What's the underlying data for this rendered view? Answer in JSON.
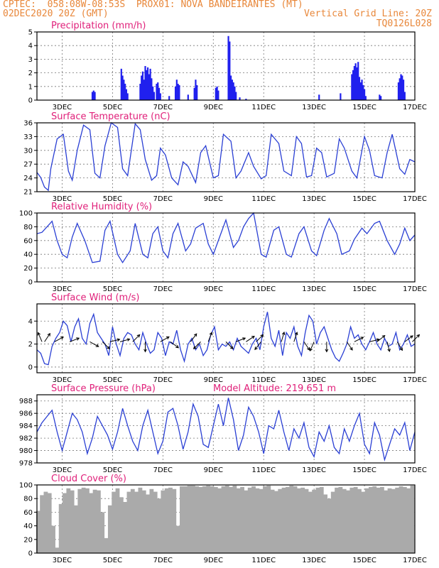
{
  "header": {
    "line1_left": "CPTEC:  058:08W-08:53S  PROX01: NOVA BANDEIRANTES (MT)",
    "line2_left": "02DEC2020 20Z (GMT)",
    "line2_right": "Vertical Grid Line: 20Z",
    "line3_right": "TQ0126L028"
  },
  "colors": {
    "header": "#e8873a",
    "title": "#e0207a",
    "series": "#2a3fd4",
    "bars": "#2020ee",
    "cloud": "#aaaaaa"
  },
  "chart_data": [
    {
      "type": "bar",
      "title": "Precipitation (mm/h)",
      "x_tick_labels": [
        "3DEC",
        "5DEC",
        "7DEC",
        "9DEC",
        "11DEC",
        "13DEC",
        "15DEC",
        "17DEC"
      ],
      "x_tick_days": [
        3,
        5,
        7,
        9,
        11,
        13,
        15,
        17
      ],
      "xlim": [
        2.0,
        17.0
      ],
      "ylim": [
        0,
        5
      ],
      "y_ticks": [
        0,
        1,
        2,
        3,
        4,
        5
      ],
      "grid": true,
      "x": [
        4.2,
        4.25,
        4.3,
        5.35,
        5.4,
        5.45,
        5.5,
        5.55,
        5.6,
        6.1,
        6.15,
        6.2,
        6.25,
        6.3,
        6.35,
        6.4,
        6.45,
        6.5,
        6.55,
        6.6,
        6.65,
        6.75,
        6.8,
        6.85,
        6.9,
        7.25,
        7.5,
        7.55,
        7.6,
        7.65,
        8.0,
        8.25,
        8.3,
        8.35,
        9.1,
        9.15,
        9.2,
        9.6,
        9.65,
        9.7,
        9.75,
        9.8,
        9.85,
        9.9,
        10.05,
        10.3,
        13.2,
        14.05,
        14.5,
        14.55,
        14.6,
        14.65,
        14.7,
        14.75,
        14.8,
        14.85,
        14.9,
        14.95,
        15.0,
        15.05,
        15.6,
        15.65,
        16.35,
        16.4,
        16.45,
        16.5,
        16.55,
        16.6
      ],
      "values": [
        0.6,
        0.7,
        0.6,
        2.3,
        1.8,
        1.5,
        1.2,
        0.8,
        0.5,
        1.2,
        1.8,
        2.1,
        1.5,
        2.5,
        2.2,
        2.4,
        1.9,
        2.3,
        1.6,
        1.0,
        0.6,
        1.2,
        1.3,
        0.9,
        0.5,
        0.3,
        1.0,
        1.5,
        1.2,
        1.1,
        0.4,
        0.9,
        1.5,
        1.1,
        0.9,
        1.0,
        0.7,
        4.7,
        4.3,
        1.8,
        1.5,
        1.3,
        1.0,
        0.6,
        0.2,
        0.1,
        0.4,
        0.5,
        1.9,
        2.2,
        2.5,
        2.7,
        2.4,
        2.8,
        1.7,
        1.3,
        1.5,
        1.1,
        0.8,
        0.3,
        0.4,
        0.3,
        1.3,
        1.6,
        1.9,
        1.8,
        1.5,
        0.6
      ]
    },
    {
      "type": "line",
      "title": "Surface Temperature (nC)",
      "x_tick_labels": [
        "3DEC",
        "5DEC",
        "7DEC",
        "9DEC",
        "11DEC",
        "13DEC",
        "15DEC",
        "17DEC"
      ],
      "x_tick_days": [
        3,
        5,
        7,
        9,
        11,
        13,
        15,
        17
      ],
      "xlim": [
        2.0,
        17.0
      ],
      "ylim": [
        21,
        36
      ],
      "y_ticks": [
        21,
        24,
        27,
        30,
        33,
        36
      ],
      "grid": true,
      "x": [
        2.0,
        2.15,
        2.3,
        2.45,
        2.55,
        2.8,
        3.05,
        3.25,
        3.4,
        3.6,
        3.85,
        4.1,
        4.3,
        4.5,
        4.7,
        4.95,
        5.2,
        5.4,
        5.6,
        5.9,
        6.1,
        6.3,
        6.55,
        6.75,
        6.9,
        7.1,
        7.35,
        7.6,
        7.8,
        8.0,
        8.3,
        8.5,
        8.7,
        9.0,
        9.2,
        9.4,
        9.7,
        9.9,
        10.1,
        10.4,
        10.6,
        10.9,
        11.1,
        11.3,
        11.6,
        11.8,
        12.1,
        12.3,
        12.5,
        12.7,
        12.9,
        13.1,
        13.3,
        13.5,
        13.8,
        14.0,
        14.2,
        14.5,
        14.7,
        15.0,
        15.2,
        15.4,
        15.7,
        15.9,
        16.1,
        16.4,
        16.6,
        16.8,
        17.0
      ],
      "values": [
        25.2,
        24.1,
        22.0,
        21.3,
        26.0,
        32.5,
        33.5,
        25.5,
        23.5,
        30.0,
        35.5,
        34.5,
        25.0,
        24.0,
        31.0,
        36.0,
        35.0,
        26.0,
        24.5,
        35.8,
        34.5,
        28.0,
        23.5,
        24.5,
        30.5,
        29.0,
        24.0,
        22.5,
        27.5,
        26.5,
        23.0,
        29.5,
        31.0,
        24.0,
        24.5,
        33.5,
        32.0,
        24.0,
        25.5,
        29.5,
        26.5,
        23.8,
        24.5,
        33.5,
        31.5,
        25.5,
        24.5,
        33.0,
        31.5,
        24.2,
        24.5,
        30.5,
        29.5,
        24.2,
        25.0,
        32.5,
        30.5,
        25.5,
        24.0,
        33.0,
        30.0,
        24.5,
        24.0,
        29.5,
        33.5,
        26.0,
        24.8,
        28.0,
        27.5
      ]
    },
    {
      "type": "line",
      "title": "Relative Humidity (%)",
      "x_tick_labels": [
        "3DEC",
        "5DEC",
        "7DEC",
        "9DEC",
        "11DEC",
        "13DEC",
        "15DEC",
        "17DEC"
      ],
      "x_tick_days": [
        3,
        5,
        7,
        9,
        11,
        13,
        15,
        17
      ],
      "xlim": [
        2.0,
        17.0
      ],
      "ylim": [
        0,
        100
      ],
      "y_ticks": [
        0,
        20,
        40,
        60,
        80,
        100
      ],
      "grid": true,
      "x": [
        2.0,
        2.2,
        2.4,
        2.6,
        2.8,
        3.0,
        3.2,
        3.4,
        3.6,
        3.9,
        4.2,
        4.5,
        4.7,
        4.9,
        5.2,
        5.4,
        5.7,
        5.9,
        6.2,
        6.4,
        6.6,
        6.8,
        7.0,
        7.2,
        7.4,
        7.6,
        7.9,
        8.1,
        8.3,
        8.6,
        8.8,
        9.0,
        9.3,
        9.5,
        9.8,
        10.0,
        10.2,
        10.4,
        10.6,
        10.9,
        11.1,
        11.4,
        11.6,
        11.9,
        12.1,
        12.4,
        12.6,
        12.9,
        13.1,
        13.4,
        13.6,
        13.9,
        14.1,
        14.4,
        14.6,
        14.9,
        15.1,
        15.4,
        15.6,
        15.9,
        16.2,
        16.4,
        16.6,
        16.8,
        17.0
      ],
      "values": [
        70,
        72,
        80,
        88,
        60,
        40,
        35,
        65,
        85,
        60,
        28,
        30,
        75,
        88,
        40,
        28,
        45,
        85,
        40,
        35,
        70,
        80,
        45,
        35,
        70,
        85,
        45,
        55,
        78,
        85,
        55,
        40,
        70,
        90,
        50,
        60,
        80,
        92,
        100,
        40,
        36,
        75,
        80,
        40,
        36,
        70,
        80,
        45,
        38,
        75,
        92,
        70,
        40,
        45,
        62,
        78,
        70,
        85,
        88,
        60,
        40,
        55,
        78,
        60,
        68
      ]
    },
    {
      "type": "line",
      "title": "Surface Wind (m/s)",
      "x_tick_labels": [
        "3DEC",
        "5DEC",
        "7DEC",
        "9DEC",
        "11DEC",
        "13DEC",
        "15DEC",
        "17DEC"
      ],
      "x_tick_days": [
        3,
        5,
        7,
        9,
        11,
        13,
        15,
        17
      ],
      "xlim": [
        2.0,
        17.0
      ],
      "ylim": [
        -0.5,
        5.5
      ],
      "y_ticks": [
        0,
        2,
        4
      ],
      "grid": true,
      "x": [
        2.0,
        2.15,
        2.3,
        2.45,
        2.6,
        2.75,
        2.9,
        3.05,
        3.2,
        3.35,
        3.5,
        3.65,
        3.8,
        3.95,
        4.1,
        4.25,
        4.4,
        4.55,
        4.7,
        4.85,
        5.0,
        5.15,
        5.3,
        5.45,
        5.6,
        5.75,
        5.9,
        6.05,
        6.2,
        6.35,
        6.5,
        6.65,
        6.8,
        6.95,
        7.1,
        7.25,
        7.4,
        7.55,
        7.7,
        7.85,
        8.0,
        8.15,
        8.3,
        8.45,
        8.6,
        8.75,
        8.9,
        9.05,
        9.2,
        9.35,
        9.5,
        9.65,
        9.8,
        9.95,
        10.1,
        10.25,
        10.4,
        10.55,
        10.7,
        10.85,
        11.0,
        11.15,
        11.3,
        11.45,
        11.6,
        11.75,
        11.9,
        12.05,
        12.2,
        12.35,
        12.5,
        12.65,
        12.8,
        12.95,
        13.1,
        13.25,
        13.4,
        13.55,
        13.7,
        13.85,
        14.0,
        14.15,
        14.3,
        14.45,
        14.6,
        14.75,
        14.9,
        15.05,
        15.2,
        15.35,
        15.5,
        15.65,
        15.8,
        15.95,
        16.1,
        16.25,
        16.4,
        16.55,
        16.7,
        16.85,
        17.0
      ],
      "values": [
        1.5,
        1.2,
        0.3,
        0.2,
        1.8,
        2.5,
        3.0,
        4.0,
        3.6,
        2.2,
        3.5,
        4.2,
        2.5,
        2.0,
        3.8,
        4.6,
        3.0,
        2.5,
        2.0,
        1.0,
        3.5,
        2.0,
        1.0,
        2.5,
        3.0,
        2.8,
        2.0,
        1.5,
        3.0,
        2.0,
        1.2,
        1.5,
        3.0,
        2.5,
        1.0,
        2.2,
        2.0,
        3.2,
        1.5,
        0.5,
        2.0,
        2.5,
        1.5,
        2.0,
        1.0,
        1.5,
        2.8,
        3.5,
        1.5,
        2.0,
        1.8,
        2.2,
        1.5,
        2.5,
        1.8,
        1.5,
        1.2,
        2.0,
        2.5,
        1.5,
        3.5,
        4.8,
        2.5,
        1.8,
        3.2,
        1.0,
        3.0,
        2.5,
        3.5,
        1.8,
        1.0,
        3.0,
        4.5,
        4.0,
        2.0,
        3.0,
        3.5,
        2.5,
        1.5,
        0.8,
        0.5,
        1.2,
        2.0,
        3.5,
        2.5,
        2.8,
        2.0,
        1.5,
        2.2,
        3.0,
        2.0,
        1.5,
        2.5,
        1.8,
        2.0,
        3.0,
        1.5,
        2.0,
        2.8,
        1.8,
        2.0
      ],
      "vectors": [
        [
          2.2,
          -0.6,
          1.4
        ],
        [
          2.3,
          0.6,
          0.9
        ],
        [
          2.7,
          1.1,
          0.6
        ],
        [
          3.3,
          1.3,
          0.5
        ],
        [
          4.1,
          0.9,
          -0.5
        ],
        [
          4.6,
          0.6,
          -0.6
        ],
        [
          4.9,
          0.8,
          0.2
        ],
        [
          5.3,
          1.1,
          0.3
        ],
        [
          5.8,
          0.5,
          0.5
        ],
        [
          6.3,
          0.0,
          -1.0
        ],
        [
          6.9,
          0.7,
          0.4
        ],
        [
          7.3,
          0.4,
          -0.3
        ],
        [
          8.1,
          0.3,
          0.4
        ],
        [
          8.5,
          -0.4,
          -0.4
        ],
        [
          8.8,
          0.3,
          0.8
        ],
        [
          9.5,
          0.5,
          -0.5
        ],
        [
          9.9,
          0.5,
          0.2
        ],
        [
          10.3,
          0.6,
          0.4
        ],
        [
          10.7,
          0.4,
          0.4
        ],
        [
          10.9,
          -0.8,
          -1.0
        ],
        [
          11.7,
          0.3,
          1.0
        ],
        [
          12.2,
          0.2,
          0.6
        ],
        [
          12.6,
          0.4,
          -0.6
        ],
        [
          13.0,
          -0.4,
          -0.9
        ],
        [
          13.5,
          0.0,
          -0.8
        ],
        [
          14.3,
          0.6,
          -0.9
        ],
        [
          14.6,
          0.4,
          0.2
        ],
        [
          15.2,
          0.4,
          0.1
        ],
        [
          15.5,
          0.5,
          0.4
        ],
        [
          15.9,
          0.1,
          -0.4
        ],
        [
          16.3,
          0.3,
          -0.5
        ],
        [
          16.6,
          0.4,
          0.3
        ],
        [
          16.9,
          0.3,
          0.3
        ]
      ]
    },
    {
      "type": "line",
      "title": "Surface Pressure (hPa)",
      "annotation": "Model Altitude: 219.651 m",
      "x_tick_labels": [
        "3DEC",
        "5DEC",
        "7DEC",
        "9DEC",
        "11DEC",
        "13DEC",
        "15DEC",
        "17DEC"
      ],
      "x_tick_days": [
        3,
        5,
        7,
        9,
        11,
        13,
        15,
        17
      ],
      "xlim": [
        2.0,
        17.0
      ],
      "ylim": [
        978,
        989
      ],
      "y_ticks": [
        978,
        980,
        982,
        984,
        986,
        988
      ],
      "grid": true,
      "x": [
        2.0,
        2.2,
        2.4,
        2.6,
        2.8,
        3.0,
        3.2,
        3.4,
        3.6,
        3.8,
        4.0,
        4.2,
        4.4,
        4.6,
        4.8,
        5.0,
        5.2,
        5.4,
        5.6,
        5.8,
        6.0,
        6.2,
        6.4,
        6.6,
        6.8,
        7.0,
        7.2,
        7.4,
        7.6,
        7.8,
        8.0,
        8.2,
        8.4,
        8.6,
        8.8,
        9.0,
        9.2,
        9.4,
        9.6,
        9.8,
        10.0,
        10.2,
        10.4,
        10.6,
        10.8,
        11.0,
        11.2,
        11.4,
        11.6,
        11.8,
        12.0,
        12.2,
        12.4,
        12.6,
        12.8,
        13.0,
        13.2,
        13.4,
        13.6,
        13.8,
        14.0,
        14.2,
        14.4,
        14.6,
        14.8,
        15.0,
        15.2,
        15.4,
        15.6,
        15.8,
        16.0,
        16.2,
        16.4,
        16.6,
        16.8,
        17.0
      ],
      "values": [
        983.0,
        984.5,
        985.5,
        986.5,
        983.0,
        980.0,
        983.0,
        986.0,
        985.0,
        983.0,
        979.5,
        982.0,
        985.5,
        984.0,
        982.5,
        980.2,
        983.0,
        986.8,
        984.0,
        981.5,
        980.0,
        984.0,
        986.5,
        983.0,
        979.5,
        981.5,
        986.2,
        986.8,
        984.0,
        980.2,
        983.0,
        987.5,
        985.5,
        981.0,
        980.5,
        984.0,
        987.5,
        984.0,
        988.5,
        985.0,
        980.0,
        982.5,
        987.0,
        985.5,
        983.0,
        979.5,
        984.0,
        983.5,
        986.5,
        983.0,
        980.0,
        983.5,
        982.0,
        984.5,
        980.5,
        979.0,
        983.0,
        981.5,
        984.0,
        980.5,
        979.5,
        983.5,
        981.5,
        984.0,
        986.0,
        981.0,
        979.5,
        984.5,
        982.5,
        978.5,
        981.0,
        983.5,
        982.5,
        984.5,
        980.0,
        983.0
      ]
    },
    {
      "type": "bar",
      "title": "Cloud Cover (%)",
      "x_tick_labels": [
        "3DEC",
        "5DEC",
        "7DEC",
        "9DEC",
        "11DEC",
        "13DEC",
        "15DEC",
        "17DEC"
      ],
      "x_tick_days": [
        3,
        5,
        7,
        9,
        11,
        13,
        15,
        17
      ],
      "xlim": [
        2.0,
        17.0
      ],
      "ylim": [
        0,
        100
      ],
      "y_ticks": [
        0,
        20,
        40,
        60,
        80,
        100
      ],
      "grid": true,
      "x": [
        2.05,
        2.2,
        2.35,
        2.5,
        2.65,
        2.8,
        2.95,
        3.1,
        3.25,
        3.4,
        3.55,
        3.7,
        3.85,
        4.0,
        4.15,
        4.3,
        4.45,
        4.6,
        4.75,
        4.9,
        5.05,
        5.2,
        5.35,
        5.5,
        5.65,
        5.8,
        5.95,
        6.1,
        6.25,
        6.4,
        6.55,
        6.7,
        6.85,
        7.0,
        7.15,
        7.3,
        7.45,
        7.6,
        7.75,
        7.9,
        8.05,
        8.2,
        8.35,
        8.5,
        8.65,
        8.8,
        8.95,
        9.1,
        9.25,
        9.4,
        9.55,
        9.7,
        9.85,
        10.0,
        10.15,
        10.3,
        10.45,
        10.6,
        10.75,
        10.9,
        11.05,
        11.2,
        11.35,
        11.5,
        11.65,
        11.8,
        11.95,
        12.1,
        12.25,
        12.4,
        12.55,
        12.7,
        12.85,
        13.0,
        13.15,
        13.3,
        13.45,
        13.6,
        13.75,
        13.9,
        14.05,
        14.2,
        14.35,
        14.5,
        14.65,
        14.8,
        14.95,
        15.1,
        15.25,
        15.4,
        15.55,
        15.7,
        15.85,
        16.0,
        16.15,
        16.3,
        16.45,
        16.6,
        16.75,
        16.9
      ],
      "values": [
        62,
        85,
        90,
        88,
        40,
        8,
        72,
        88,
        95,
        92,
        70,
        94,
        96,
        95,
        88,
        93,
        92,
        60,
        22,
        70,
        90,
        95,
        82,
        75,
        90,
        94,
        90,
        96,
        92,
        86,
        94,
        90,
        80,
        92,
        95,
        96,
        94,
        40,
        98,
        98,
        99,
        99,
        98,
        97,
        98,
        99,
        98,
        97,
        95,
        98,
        99,
        97,
        99,
        95,
        97,
        92,
        96,
        98,
        95,
        94,
        98,
        99,
        93,
        91,
        94,
        96,
        97,
        99,
        98,
        95,
        96,
        94,
        90,
        93,
        96,
        97,
        86,
        80,
        90,
        96,
        97,
        94,
        92,
        96,
        97,
        94,
        90,
        95,
        97,
        98,
        96,
        97,
        92,
        95,
        94,
        96,
        98,
        97,
        95,
        99
      ]
    }
  ]
}
